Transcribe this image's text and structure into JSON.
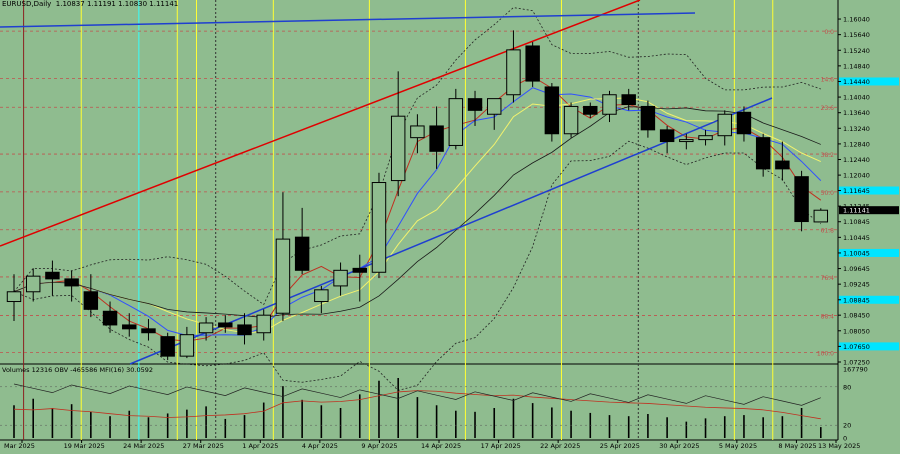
{
  "header": {
    "symbol": "EURUSD,Daily",
    "ohlc": "1.10837 1.11191 1.10830 1.11141"
  },
  "volume_header": {
    "text": "Volumes 12316  OBV -465586  MFI(16) 30.0592"
  },
  "colors": {
    "background": "#8fbc8f",
    "bull_candle": "#8fbc8f",
    "bear_candle": "#000000",
    "trendline_red": "#e00000",
    "trendline_blue": "#1f3fd0",
    "fib_level": "#c0504d",
    "vertical_yellow": "#ffff33",
    "vertical_cyan": "#33ffff",
    "ma_yellow": "#f2f26e",
    "ma_blue": "#3050ff",
    "ma_red": "#c03020",
    "ma_black": "#1a1a1a",
    "axis_highlight": "#00e5ff"
  },
  "chart_data": {
    "type": "candlestick",
    "symbol": "EURUSD",
    "timeframe": "Daily",
    "ylim": [
      1.0725,
      1.164
    ],
    "y_ticks": [
      "1.16040",
      "1.15640",
      "1.15240",
      "1.14840",
      "1.14440",
      "1.14040",
      "1.13640",
      "1.13240",
      "1.12840",
      "1.12440",
      "1.12040",
      "1.11645",
      "1.11245",
      "1.10845",
      "1.10445",
      "1.10045",
      "1.09645",
      "1.09245",
      "1.08845",
      "1.08450",
      "1.08050",
      "1.07650",
      "1.07250"
    ],
    "y_highlight_ticks": [
      "1.14440",
      "1.11645",
      "1.10045",
      "1.08845",
      "1.07650"
    ],
    "last_price": "1.11141",
    "x_ticks": [
      "Mar 2025",
      "19 Mar 2025",
      "24 Mar 2025",
      "27 Mar 2025",
      "1 Apr 2025",
      "4 Apr 2025",
      "9 Apr 2025",
      "14 Apr 2025",
      "17 Apr 2025",
      "22 Apr 2025",
      "25 Apr 2025",
      "30 Apr 2025",
      "5 May 2025",
      "8 May 2025",
      "13 May 2025"
    ],
    "fib_levels": [
      {
        "label": "0.0",
        "price": 1.1573
      },
      {
        "label": "14.6",
        "price": 1.1452
      },
      {
        "label": "23.6",
        "price": 1.1378
      },
      {
        "label": "38.2",
        "price": 1.1258
      },
      {
        "label": "50.0",
        "price": 1.1161
      },
      {
        "label": "61.8",
        "price": 1.1064
      },
      {
        "label": "76.4",
        "price": 1.0943
      },
      {
        "label": "88.4",
        "price": 1.0844
      },
      {
        "label": "100.0",
        "price": 1.0749
      }
    ],
    "candles": [
      {
        "o": 1.088,
        "h": 1.095,
        "l": 1.083,
        "c": 1.0905
      },
      {
        "o": 1.0905,
        "h": 1.0965,
        "l": 1.088,
        "c": 1.0945
      },
      {
        "o": 1.0955,
        "h": 1.0985,
        "l": 1.0895,
        "c": 1.0938
      },
      {
        "o": 1.0938,
        "h": 1.096,
        "l": 1.088,
        "c": 1.092
      },
      {
        "o": 1.0905,
        "h": 1.095,
        "l": 1.084,
        "c": 1.086
      },
      {
        "o": 1.0855,
        "h": 1.088,
        "l": 1.08,
        "c": 1.082
      },
      {
        "o": 1.082,
        "h": 1.085,
        "l": 1.079,
        "c": 1.081
      },
      {
        "o": 1.081,
        "h": 1.0835,
        "l": 1.078,
        "c": 1.08
      },
      {
        "o": 1.079,
        "h": 1.08,
        "l": 1.073,
        "c": 1.074
      },
      {
        "o": 1.074,
        "h": 1.0815,
        "l": 1.0735,
        "c": 1.0795
      },
      {
        "o": 1.08,
        "h": 1.084,
        "l": 1.078,
        "c": 1.0825
      },
      {
        "o": 1.0825,
        "h": 1.0845,
        "l": 1.08,
        "c": 1.0815
      },
      {
        "o": 1.082,
        "h": 1.085,
        "l": 1.077,
        "c": 1.0795
      },
      {
        "o": 1.08,
        "h": 1.086,
        "l": 1.078,
        "c": 1.0845
      },
      {
        "o": 1.085,
        "h": 1.116,
        "l": 1.083,
        "c": 1.104
      },
      {
        "o": 1.1045,
        "h": 1.112,
        "l": 1.095,
        "c": 1.096
      },
      {
        "o": 1.088,
        "h": 1.092,
        "l": 1.085,
        "c": 1.091
      },
      {
        "o": 1.092,
        "h": 1.098,
        "l": 1.0895,
        "c": 1.096
      },
      {
        "o": 1.0965,
        "h": 1.1,
        "l": 1.088,
        "c": 1.0955
      },
      {
        "o": 1.0955,
        "h": 1.121,
        "l": 1.094,
        "c": 1.1185
      },
      {
        "o": 1.119,
        "h": 1.147,
        "l": 1.115,
        "c": 1.1355
      },
      {
        "o": 1.13,
        "h": 1.136,
        "l": 1.126,
        "c": 1.133
      },
      {
        "o": 1.133,
        "h": 1.138,
        "l": 1.122,
        "c": 1.1265
      },
      {
        "o": 1.128,
        "h": 1.1425,
        "l": 1.127,
        "c": 1.14
      },
      {
        "o": 1.14,
        "h": 1.142,
        "l": 1.133,
        "c": 1.137
      },
      {
        "o": 1.136,
        "h": 1.14,
        "l": 1.132,
        "c": 1.14
      },
      {
        "o": 1.141,
        "h": 1.1575,
        "l": 1.139,
        "c": 1.1525
      },
      {
        "o": 1.1535,
        "h": 1.1545,
        "l": 1.143,
        "c": 1.1445
      },
      {
        "o": 1.143,
        "h": 1.144,
        "l": 1.129,
        "c": 1.131
      },
      {
        "o": 1.131,
        "h": 1.139,
        "l": 1.13,
        "c": 1.138
      },
      {
        "o": 1.138,
        "h": 1.139,
        "l": 1.135,
        "c": 1.136
      },
      {
        "o": 1.136,
        "h": 1.142,
        "l": 1.134,
        "c": 1.141
      },
      {
        "o": 1.141,
        "h": 1.1425,
        "l": 1.137,
        "c": 1.1385
      },
      {
        "o": 1.138,
        "h": 1.1395,
        "l": 1.13,
        "c": 1.132
      },
      {
        "o": 1.132,
        "h": 1.133,
        "l": 1.126,
        "c": 1.129
      },
      {
        "o": 1.129,
        "h": 1.131,
        "l": 1.127,
        "c": 1.1295
      },
      {
        "o": 1.1295,
        "h": 1.132,
        "l": 1.128,
        "c": 1.1305
      },
      {
        "o": 1.1305,
        "h": 1.137,
        "l": 1.128,
        "c": 1.136
      },
      {
        "o": 1.1365,
        "h": 1.138,
        "l": 1.129,
        "c": 1.131
      },
      {
        "o": 1.13,
        "h": 1.131,
        "l": 1.12,
        "c": 1.122
      },
      {
        "o": 1.124,
        "h": 1.129,
        "l": 1.119,
        "c": 1.122
      },
      {
        "o": 1.12,
        "h": 1.1215,
        "l": 1.106,
        "c": 1.1085
      },
      {
        "o": 1.1084,
        "h": 1.1119,
        "l": 1.1083,
        "c": 1.1114
      }
    ],
    "volume_panel": {
      "ylim": [
        0,
        167790
      ],
      "y_ticks": [
        "167790",
        "80",
        "20",
        "0"
      ],
      "volumes": [
        60,
        72,
        55,
        62,
        48,
        40,
        50,
        38,
        45,
        52,
        58,
        35,
        42,
        65,
        95,
        70,
        60,
        55,
        80,
        105,
        110,
        75,
        60,
        50,
        48,
        55,
        72,
        64,
        56,
        50,
        46,
        42,
        40,
        44,
        38,
        30,
        36,
        40,
        42,
        38,
        40,
        55,
        20
      ],
      "mfi": [
        45,
        44,
        46,
        43,
        41,
        38,
        35,
        34,
        32,
        33,
        35,
        36,
        38,
        42,
        55,
        58,
        56,
        57,
        60,
        66,
        72,
        74,
        73,
        70,
        68,
        66,
        67,
        64,
        62,
        60,
        58,
        56,
        55,
        54,
        52,
        50,
        48,
        47,
        46,
        44,
        40,
        35,
        30
      ]
    }
  }
}
